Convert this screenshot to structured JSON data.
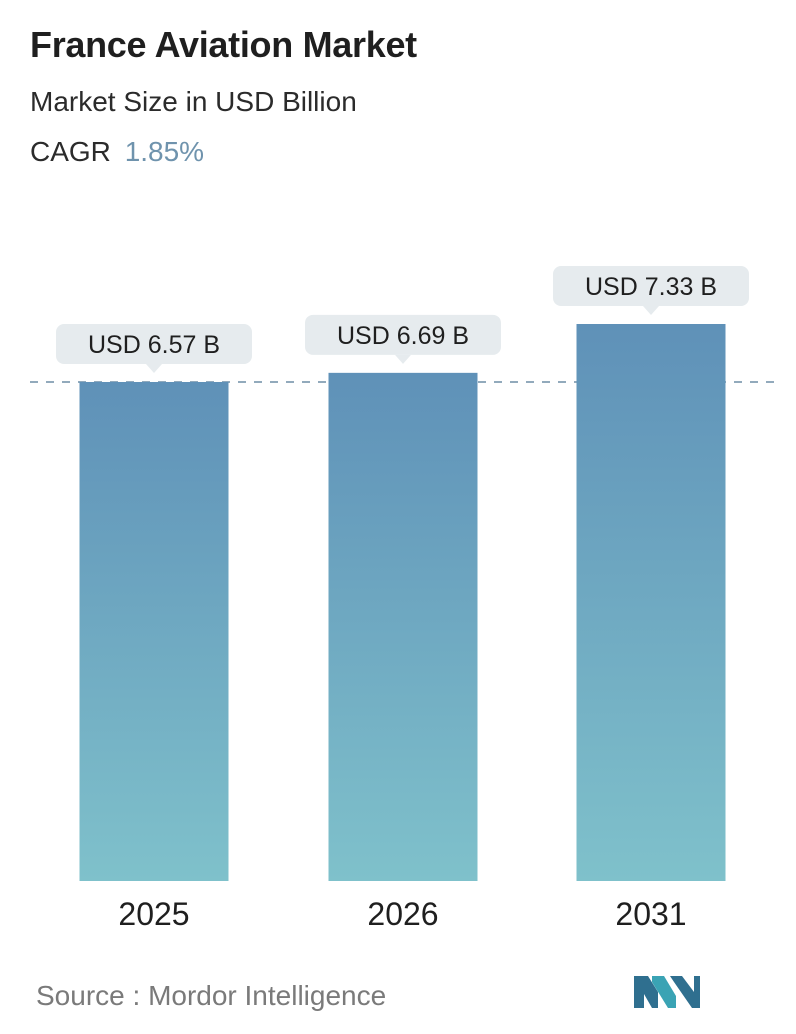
{
  "header": {
    "title": "France Aviation Market",
    "subtitle": "Market Size in USD Billion",
    "cagr_label": "CAGR",
    "cagr_value": "1.85%"
  },
  "chart_data": {
    "type": "bar",
    "categories": [
      "2025",
      "2026",
      "2031"
    ],
    "values": [
      6.57,
      6.69,
      7.33
    ],
    "data_labels": [
      "USD 6.57 B",
      "USD 6.69 B",
      "USD 7.33 B"
    ],
    "title": "France Aviation Market",
    "subtitle": "Market Size in USD Billion",
    "xlabel": "",
    "ylabel": "",
    "grid": false,
    "reference_line": 6.57,
    "bar_gradient": [
      "#5f91b8",
      "#7fc1cb"
    ]
  },
  "footer": {
    "source_label": "Source :",
    "source_name": "Mordor Intelligence",
    "logo_icon": "mordor-intelligence-logo-icon"
  }
}
